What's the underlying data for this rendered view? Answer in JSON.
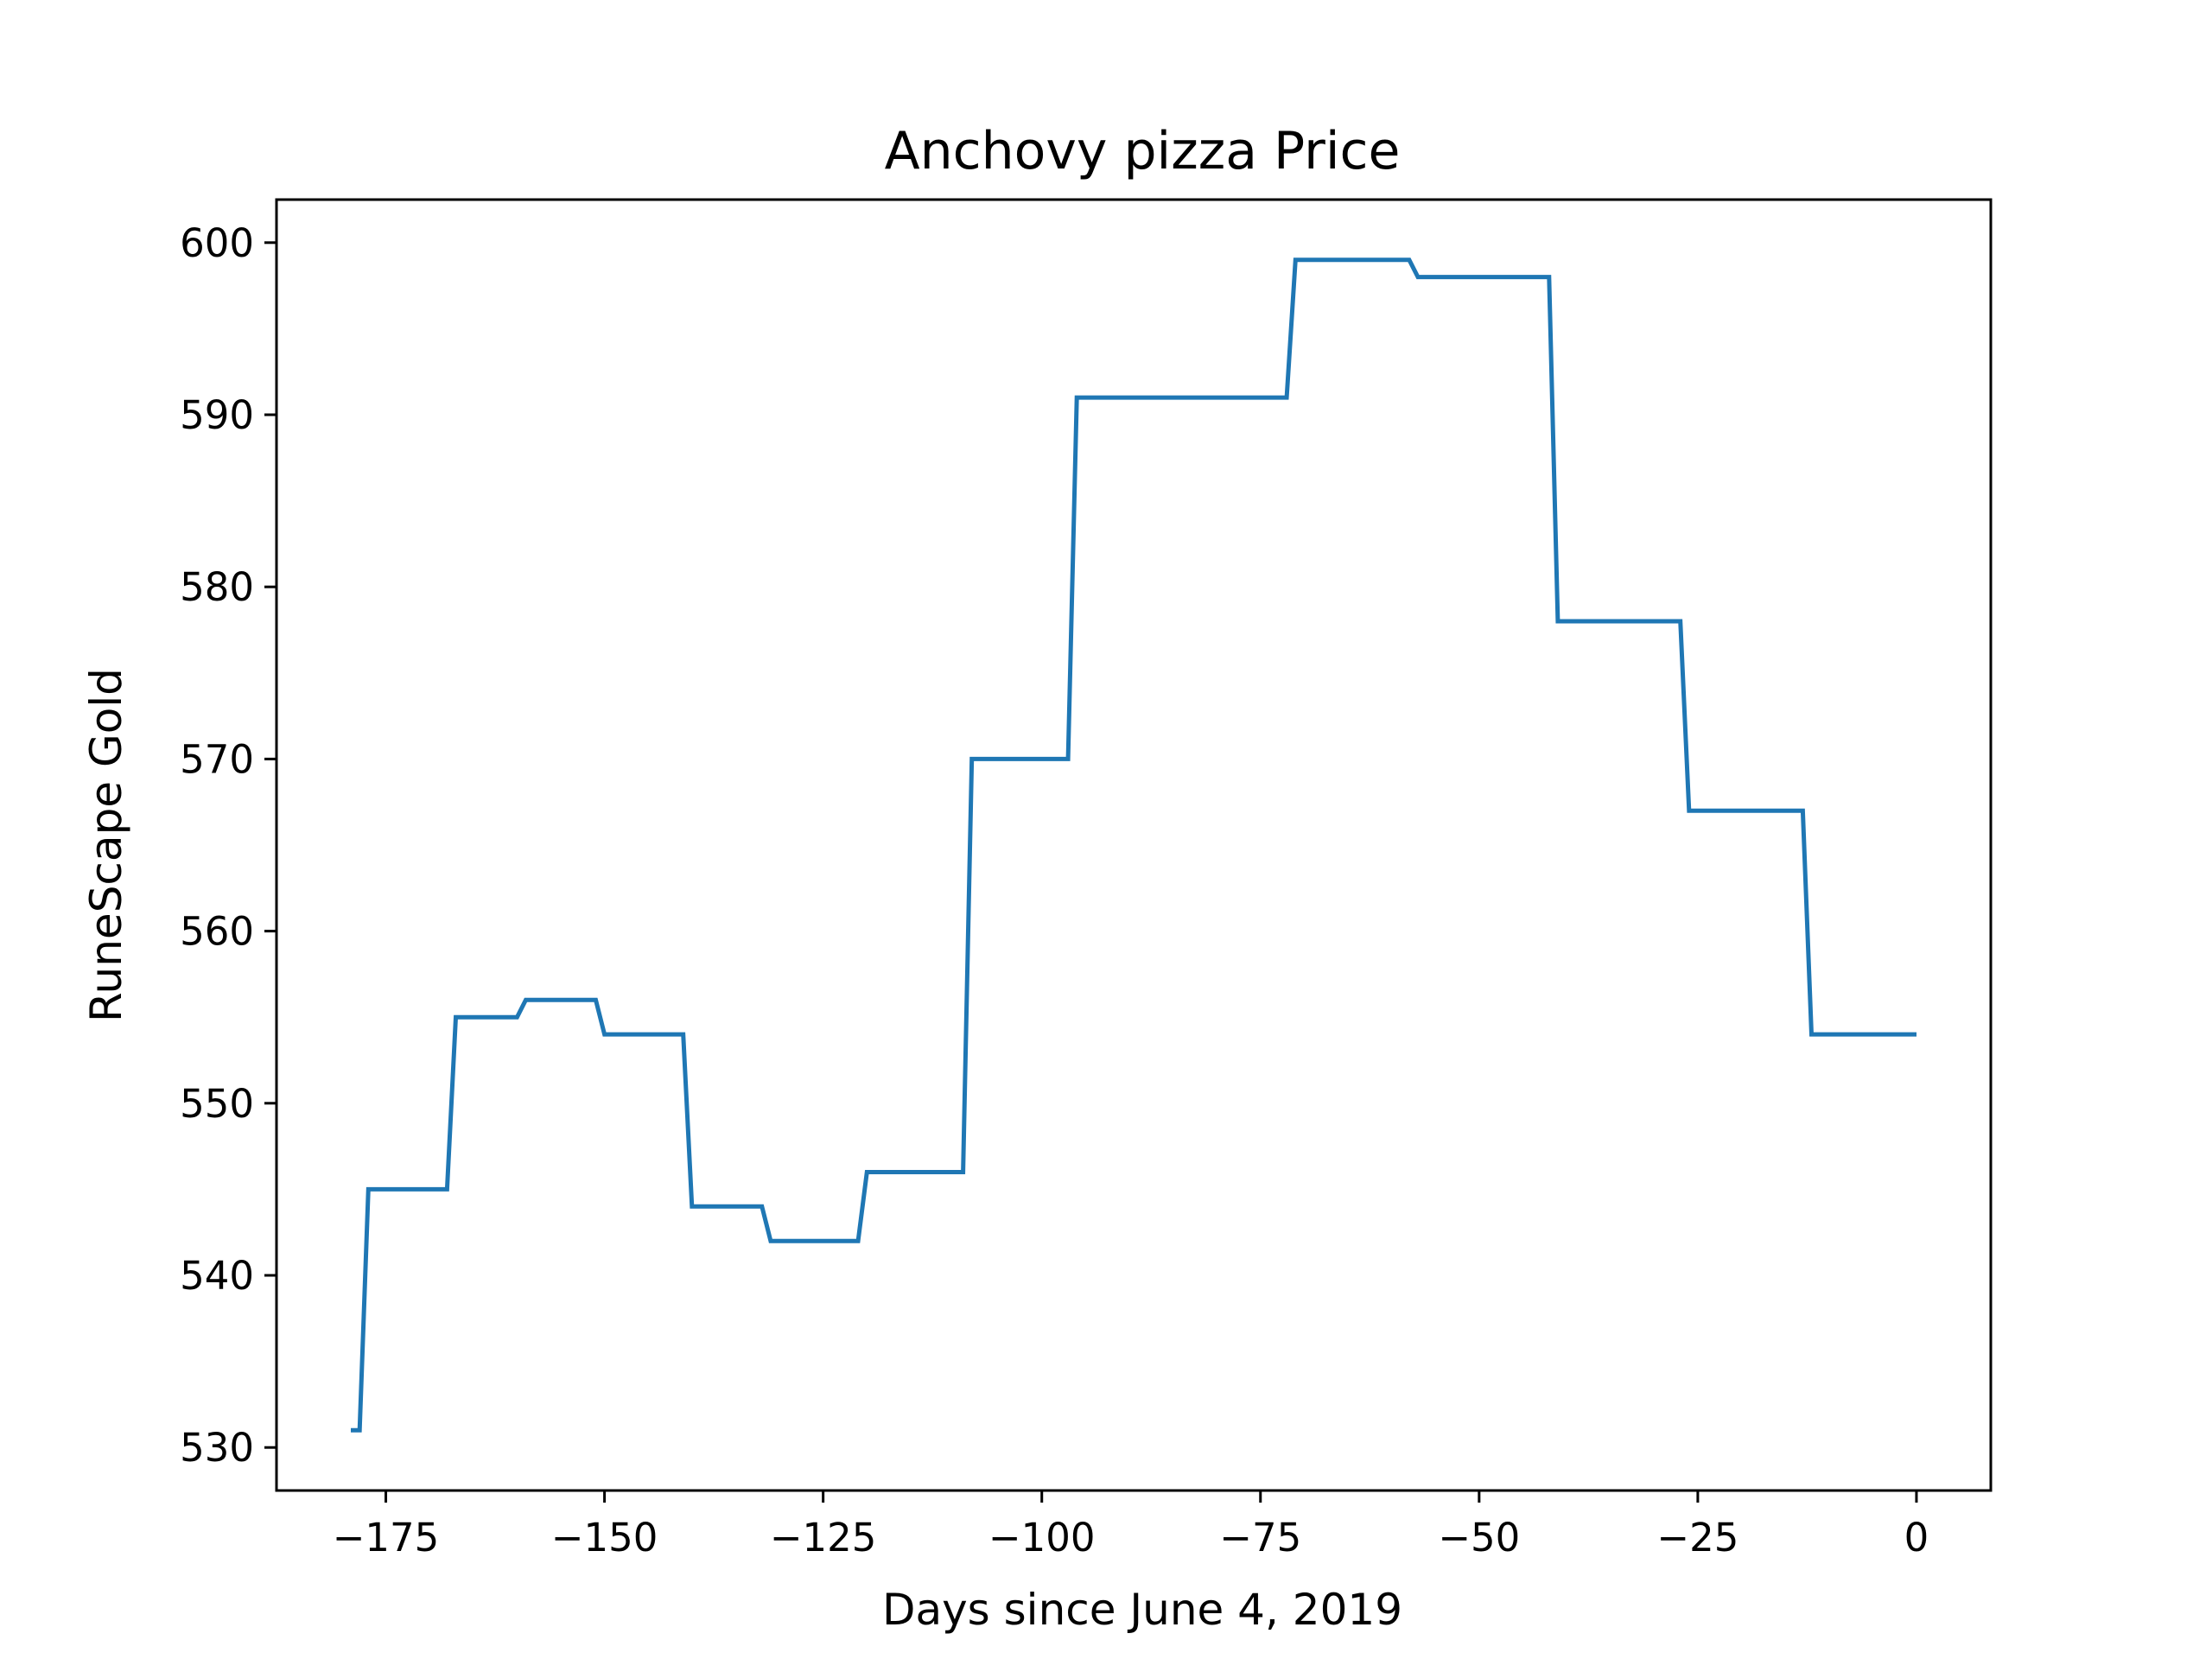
{
  "chart_data": {
    "type": "line",
    "title": "Anchovy pizza Price",
    "xlabel": "Days since June 4, 2019",
    "ylabel": "RuneScape Gold",
    "xlim": [
      -187.5,
      8.5
    ],
    "ylim": [
      527.5,
      602.5
    ],
    "xticks": [
      -175,
      -150,
      -125,
      -100,
      -75,
      -50,
      -25,
      0
    ],
    "xtick_labels": [
      "−175",
      "−150",
      "−125",
      "−100",
      "−75",
      "−50",
      "−25",
      "0"
    ],
    "yticks": [
      530,
      540,
      550,
      560,
      570,
      580,
      590,
      600
    ],
    "ytick_labels": [
      "530",
      "540",
      "550",
      "560",
      "570",
      "580",
      "590",
      "600"
    ],
    "grid": false,
    "line_color": "#1f77b4",
    "series": [
      {
        "points": [
          [
            -179,
            531
          ],
          [
            -178,
            531
          ],
          [
            -177,
            545
          ],
          [
            -168,
            545
          ],
          [
            -167,
            555
          ],
          [
            -160,
            555
          ],
          [
            -159,
            556
          ],
          [
            -151,
            556
          ],
          [
            -150,
            554
          ],
          [
            -141,
            554
          ],
          [
            -140,
            544
          ],
          [
            -132,
            544
          ],
          [
            -131,
            542
          ],
          [
            -121,
            542
          ],
          [
            -120,
            546
          ],
          [
            -109,
            546
          ],
          [
            -108,
            570
          ],
          [
            -97,
            570
          ],
          [
            -96,
            591
          ],
          [
            -72,
            591
          ],
          [
            -71,
            599
          ],
          [
            -58,
            599
          ],
          [
            -57,
            598
          ],
          [
            -42,
            598
          ],
          [
            -41,
            578
          ],
          [
            -27,
            578
          ],
          [
            -26,
            567
          ],
          [
            -13,
            567
          ],
          [
            -12,
            554
          ],
          [
            0,
            554
          ]
        ]
      }
    ]
  }
}
